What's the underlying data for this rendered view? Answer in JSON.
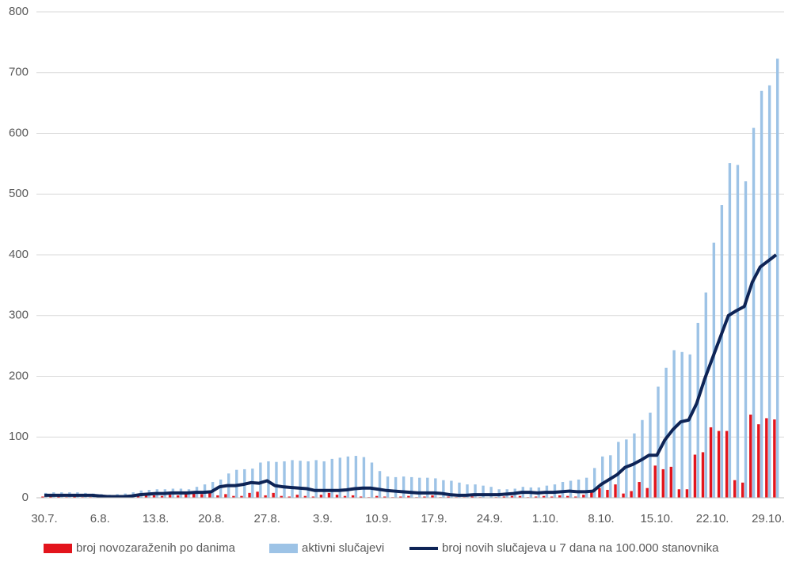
{
  "chart_data": {
    "type": "bar",
    "categories": [
      "30.7.",
      null,
      null,
      null,
      null,
      null,
      null,
      "6.8.",
      null,
      null,
      null,
      null,
      null,
      null,
      "13.8.",
      null,
      null,
      null,
      null,
      null,
      null,
      "20.8.",
      null,
      null,
      null,
      null,
      null,
      null,
      "27.8.",
      null,
      null,
      null,
      null,
      null,
      null,
      "3.9.",
      null,
      null,
      null,
      null,
      null,
      null,
      "10.9.",
      null,
      null,
      null,
      null,
      null,
      null,
      "17.9.",
      null,
      null,
      null,
      null,
      null,
      null,
      "24.9.",
      null,
      null,
      null,
      null,
      null,
      null,
      "1.10.",
      null,
      null,
      null,
      null,
      null,
      null,
      "8.10.",
      null,
      null,
      null,
      null,
      null,
      null,
      "15.10.",
      null,
      null,
      null,
      null,
      null,
      null,
      "22.10.",
      null,
      null,
      null,
      null,
      null,
      null,
      "29.10.",
      null
    ],
    "series": [
      {
        "name": "broj novozaraženih po danima",
        "type": "bar",
        "color": "#e3141c",
        "values": [
          2,
          3,
          2,
          1,
          2,
          1,
          1,
          1,
          0,
          1,
          2,
          3,
          5,
          4,
          4,
          3,
          5,
          4,
          6,
          8,
          6,
          10,
          4,
          6,
          3,
          3,
          8,
          10,
          4,
          8,
          3,
          2,
          5,
          3,
          2,
          5,
          8,
          5,
          3,
          4,
          2,
          1,
          3,
          2,
          1,
          2,
          3,
          1,
          2,
          4,
          1,
          2,
          1,
          1,
          2,
          1,
          0,
          1,
          2,
          3,
          3,
          1,
          2,
          3,
          2,
          4,
          3,
          2,
          5,
          12,
          16,
          13,
          22,
          7,
          11,
          26,
          16,
          53,
          47,
          51,
          14,
          14,
          71,
          75,
          116,
          110,
          110,
          29,
          25,
          137,
          121,
          131,
          129
        ]
      },
      {
        "name": "aktivni slučajevi",
        "type": "bar",
        "color": "#9dc3e6",
        "values": [
          8,
          9,
          9,
          9,
          9,
          8,
          7,
          6,
          5,
          6,
          7,
          9,
          12,
          13,
          14,
          14,
          15,
          15,
          14,
          18,
          22,
          26,
          30,
          40,
          46,
          47,
          48,
          58,
          60,
          59,
          60,
          62,
          61,
          60,
          62,
          60,
          64,
          66,
          68,
          69,
          67,
          58,
          44,
          35,
          34,
          35,
          34,
          33,
          33,
          32,
          29,
          28,
          25,
          22,
          22,
          20,
          18,
          14,
          14,
          15,
          18,
          17,
          17,
          20,
          22,
          26,
          28,
          30,
          33,
          49,
          68,
          70,
          92,
          96,
          106,
          128,
          140,
          183,
          214,
          243,
          240,
          236,
          288,
          338,
          420,
          482,
          551,
          548,
          521,
          609,
          670,
          679,
          723
        ]
      },
      {
        "name": "broj novih slučajeva u 7 dana na 100.000 stanovnika",
        "type": "line",
        "color": "#0e2456",
        "values": [
          4,
          4,
          4,
          4,
          4,
          4,
          4,
          3,
          2,
          2,
          2,
          3,
          5,
          6,
          7,
          7,
          8,
          8,
          8,
          9,
          9,
          10,
          18,
          20,
          20,
          22,
          25,
          24,
          28,
          20,
          18,
          17,
          16,
          15,
          12,
          12,
          12,
          12,
          13,
          15,
          16,
          16,
          14,
          12,
          11,
          10,
          9,
          8,
          8,
          8,
          7,
          5,
          4,
          4,
          5,
          5,
          5,
          5,
          6,
          7,
          9,
          9,
          8,
          9,
          9,
          10,
          11,
          10,
          10,
          11,
          22,
          30,
          38,
          50,
          55,
          62,
          70,
          70,
          95,
          112,
          125,
          128,
          155,
          195,
          230,
          265,
          300,
          308,
          315,
          355,
          380,
          390,
          400
        ]
      }
    ],
    "ylim": [
      0,
      800
    ],
    "yticks": [
      0,
      100,
      200,
      300,
      400,
      500,
      600,
      700,
      800
    ],
    "grid": true,
    "legend": "bottom"
  }
}
